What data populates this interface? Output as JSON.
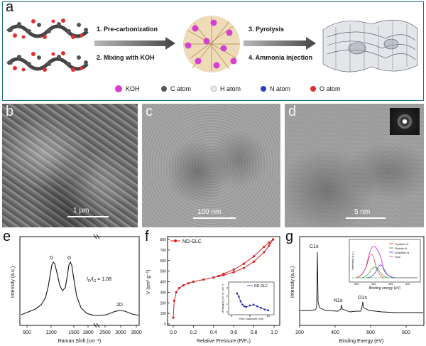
{
  "panel_a": {
    "letter": "a",
    "step1": "1. Pre-carbonization",
    "step2": "2. Mixing with KOH",
    "step3": "3. Pyrolysis",
    "step4": "4. Ammonia injection",
    "legend": [
      {
        "label": "KOH",
        "color": "#d63fd0"
      },
      {
        "label": "C atom",
        "color": "#555555"
      },
      {
        "label": "H atom",
        "color": "#e8e8e8"
      },
      {
        "label": "N atom",
        "color": "#2c3fc8"
      },
      {
        "label": "O atom",
        "color": "#e03030"
      }
    ]
  },
  "panel_b": {
    "letter": "b",
    "scale": "1 μm"
  },
  "panel_c": {
    "letter": "c",
    "scale": "100 nm"
  },
  "panel_d": {
    "letter": "d",
    "scale": "5 nm"
  },
  "chart_data": [
    {
      "panel": "e",
      "type": "line",
      "xlabel": "Raman Shift (cm⁻¹)",
      "ylabel": "Intensity (a.u.)",
      "x_ticks": [
        "900",
        "1200",
        "1500",
        "1800",
        "2500",
        "3000",
        "3500"
      ],
      "annotations": {
        "D": "D",
        "G": "G",
        "twoD": "2D",
        "ratio_lead": "I",
        "ratio_sub1": "D",
        "ratio_sep": "/I",
        "ratio_sub2": "G",
        "ratio_value": " = 1.08"
      },
      "axis_break": true
    },
    {
      "panel": "f",
      "type": "line",
      "series_name": "ND-GLC",
      "xlabel": "Relative Pressure (P/P₀)",
      "ylabel": "V (cm³ g⁻¹)",
      "xlim": [
        0,
        1.0
      ],
      "ylim": [
        0,
        800
      ],
      "x_ticks": [
        "0.0",
        "0.2",
        "0.4",
        "0.6",
        "0.8",
        "1.0"
      ],
      "y_ticks": [
        "0",
        "100",
        "200",
        "300",
        "400",
        "500",
        "600",
        "700",
        "800"
      ],
      "adsorption": [
        [
          0.0,
          60
        ],
        [
          0.01,
          220
        ],
        [
          0.03,
          300
        ],
        [
          0.06,
          340
        ],
        [
          0.1,
          365
        ],
        [
          0.15,
          385
        ],
        [
          0.2,
          400
        ],
        [
          0.3,
          420
        ],
        [
          0.4,
          440
        ],
        [
          0.5,
          462
        ],
        [
          0.6,
          490
        ],
        [
          0.7,
          530
        ],
        [
          0.8,
          590
        ],
        [
          0.9,
          680
        ],
        [
          0.95,
          740
        ],
        [
          0.99,
          800
        ]
      ],
      "desorption": [
        [
          0.99,
          800
        ],
        [
          0.95,
          770
        ],
        [
          0.9,
          730
        ],
        [
          0.8,
          640
        ],
        [
          0.7,
          570
        ],
        [
          0.6,
          515
        ],
        [
          0.5,
          475
        ],
        [
          0.45,
          455
        ]
      ],
      "inset": {
        "series_name": "ND-GLC",
        "xlabel": "Pore Diameter (nm)",
        "ylabel": "dV/dlog(D) (cm³ g⁻¹ nm⁻¹)",
        "x_ticks": [
          "0",
          "5",
          "10"
        ],
        "y_ticks": [
          "0",
          "1",
          "2",
          "3"
        ],
        "xlim": [
          0,
          11
        ],
        "ylim": [
          0,
          3
        ],
        "points": [
          [
            1.5,
            2.3
          ],
          [
            2.0,
            1.9
          ],
          [
            2.5,
            1.3
          ],
          [
            3.0,
            0.9
          ],
          [
            3.5,
            0.7
          ],
          [
            4.0,
            0.6
          ],
          [
            5.0,
            0.8
          ],
          [
            6.0,
            0.9
          ],
          [
            7.0,
            0.7
          ],
          [
            8.0,
            0.5
          ],
          [
            9.0,
            0.3
          ],
          [
            10.0,
            0.2
          ]
        ]
      }
    },
    {
      "panel": "g",
      "type": "line",
      "xlabel": "Binding Energy (eV)",
      "ylabel": "Intensity (a.u.)",
      "xlim": [
        200,
        900
      ],
      "x_ticks": [
        "200",
        "400",
        "600",
        "800"
      ],
      "peaks": {
        "C1s": "C1s",
        "N1s": "N1s",
        "O1s": "O1s"
      },
      "inset": {
        "xlabel": "Binding energy (eV)",
        "ylabel": "Intensity (a.u.)",
        "x_ticks": [
          "395",
          "400",
          "405",
          "410"
        ],
        "legend": [
          {
            "label": "Pyridinic-N",
            "color": "#d43030"
          },
          {
            "label": "Pyrrolic-N",
            "color": "#2a9a2a"
          },
          {
            "label": "Graphitic-N",
            "color": "#2a3ad0"
          },
          {
            "label": "Sum",
            "color": "#d040d0"
          }
        ]
      }
    }
  ]
}
